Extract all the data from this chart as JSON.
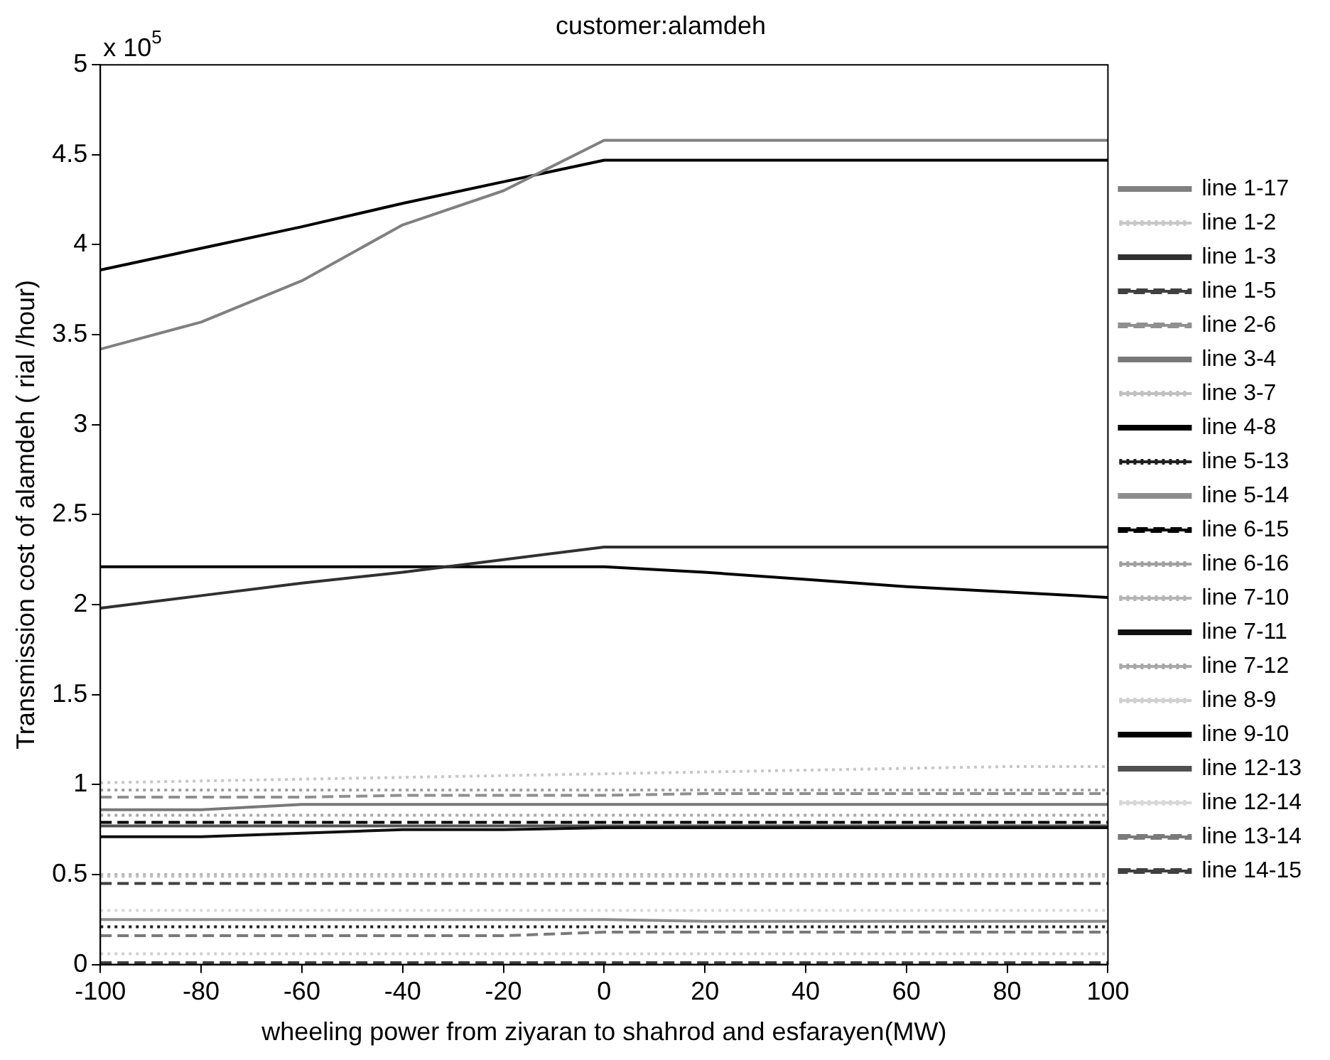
{
  "chart_data": {
    "type": "line",
    "title": "customer:alamdeh",
    "xlabel": "wheeling power from ziyaran to shahrod and esfarayen(MW)",
    "ylabel": "Transmission cost of alamdeh ( rial /hour)",
    "annotations": [
      "x 10$^{5}$"
    ],
    "x": [
      -100,
      -80,
      -60,
      -40,
      -20,
      0,
      20,
      40,
      60,
      80,
      100
    ],
    "xlim": [
      -100,
      100
    ],
    "xticks": [
      -100,
      -80,
      -60,
      -40,
      -20,
      0,
      20,
      40,
      60,
      80,
      100
    ],
    "ylim": [
      0,
      5
    ],
    "yticks": [
      0,
      0.5,
      1,
      1.5,
      2,
      2.5,
      3,
      3.5,
      4,
      4.5,
      5
    ],
    "legend": "right",
    "grid": false,
    "series": [
      {
        "name": "line 1-17",
        "color": "#808080",
        "line_style": "solid",
        "values": [
          3.42,
          3.57,
          3.8,
          4.11,
          4.3,
          4.58,
          4.58,
          4.58,
          4.58,
          4.58,
          4.58
        ]
      },
      {
        "name": "line 1-2",
        "color": "#c8c8c8",
        "line_style": "dotted",
        "values": [
          1.01,
          1.02,
          1.03,
          1.04,
          1.05,
          1.06,
          1.07,
          1.08,
          1.09,
          1.1,
          1.1
        ]
      },
      {
        "name": "line 1-3",
        "color": "#303030",
        "line_style": "solid",
        "values": [
          1.98,
          2.05,
          2.12,
          2.18,
          2.25,
          2.32,
          2.32,
          2.32,
          2.32,
          2.32,
          2.32
        ]
      },
      {
        "name": "line 1-5",
        "color": "#404040",
        "line_style": "dashed",
        "values": [
          0.45,
          0.45,
          0.45,
          0.45,
          0.45,
          0.45,
          0.45,
          0.45,
          0.45,
          0.45,
          0.45
        ]
      },
      {
        "name": "line 2-6",
        "color": "#909090",
        "line_style": "dashed",
        "values": [
          0.93,
          0.93,
          0.93,
          0.94,
          0.94,
          0.94,
          0.95,
          0.95,
          0.95,
          0.95,
          0.95
        ]
      },
      {
        "name": "line 3-4",
        "color": "#787878",
        "line_style": "solid",
        "values": [
          0.86,
          0.86,
          0.89,
          0.89,
          0.89,
          0.89,
          0.89,
          0.89,
          0.89,
          0.89,
          0.89
        ]
      },
      {
        "name": "line 3-7",
        "color": "#c0c0c0",
        "line_style": "dotted",
        "values": [
          0.49,
          0.49,
          0.49,
          0.49,
          0.49,
          0.49,
          0.49,
          0.49,
          0.49,
          0.49,
          0.49
        ]
      },
      {
        "name": "line 4-8",
        "color": "#000000",
        "line_style": "solid",
        "values": [
          3.86,
          3.98,
          4.1,
          4.23,
          4.35,
          4.47,
          4.47,
          4.47,
          4.47,
          4.47,
          4.47
        ]
      },
      {
        "name": "line 5-13",
        "color": "#202020",
        "line_style": "dotted",
        "values": [
          0.21,
          0.21,
          0.21,
          0.21,
          0.21,
          0.21,
          0.21,
          0.21,
          0.21,
          0.21,
          0.21
        ]
      },
      {
        "name": "line 5-14",
        "color": "#8c8c8c",
        "line_style": "solid",
        "values": [
          0.25,
          0.25,
          0.25,
          0.25,
          0.25,
          0.25,
          0.24,
          0.24,
          0.24,
          0.24,
          0.24
        ]
      },
      {
        "name": "line 6-15",
        "color": "#000000",
        "line_style": "dashed",
        "values": [
          0.79,
          0.79,
          0.79,
          0.79,
          0.79,
          0.79,
          0.79,
          0.79,
          0.79,
          0.79,
          0.79
        ]
      },
      {
        "name": "line 6-16",
        "color": "#a0a0a0",
        "line_style": "dotted",
        "values": [
          0.97,
          0.97,
          0.97,
          0.97,
          0.97,
          0.97,
          0.97,
          0.97,
          0.97,
          0.97,
          0.97
        ]
      },
      {
        "name": "line 7-10",
        "color": "#b4b4b4",
        "line_style": "dotted",
        "values": [
          0.5,
          0.5,
          0.5,
          0.5,
          0.5,
          0.5,
          0.5,
          0.5,
          0.5,
          0.5,
          0.5
        ]
      },
      {
        "name": "line 7-11",
        "color": "#101010",
        "line_style": "solid",
        "values": [
          0.71,
          0.71,
          0.73,
          0.75,
          0.75,
          0.76,
          0.76,
          0.76,
          0.76,
          0.76,
          0.76
        ]
      },
      {
        "name": "line 7-12",
        "color": "#a8a8a8",
        "line_style": "dotted",
        "values": [
          0.83,
          0.83,
          0.83,
          0.83,
          0.83,
          0.83,
          0.83,
          0.83,
          0.83,
          0.83,
          0.83
        ]
      },
      {
        "name": "line 8-9",
        "color": "#d0d0d0",
        "line_style": "dotted",
        "values": [
          0.06,
          0.06,
          0.06,
          0.06,
          0.06,
          0.06,
          0.06,
          0.06,
          0.06,
          0.06,
          0.06
        ]
      },
      {
        "name": "line 9-10",
        "color": "#000000",
        "line_style": "solid",
        "values": [
          2.21,
          2.21,
          2.21,
          2.21,
          2.21,
          2.21,
          2.18,
          2.14,
          2.1,
          2.07,
          2.04
        ]
      },
      {
        "name": "line 12-13",
        "color": "#505050",
        "line_style": "solid",
        "values": [
          0.77,
          0.77,
          0.77,
          0.77,
          0.77,
          0.77,
          0.77,
          0.77,
          0.77,
          0.77,
          0.77
        ]
      },
      {
        "name": "line 12-14",
        "color": "#d8d8d8",
        "line_style": "dotted",
        "values": [
          0.3,
          0.3,
          0.3,
          0.3,
          0.3,
          0.3,
          0.3,
          0.3,
          0.3,
          0.3,
          0.3
        ]
      },
      {
        "name": "line 13-14",
        "color": "#7a7a7a",
        "line_style": "dashed",
        "values": [
          0.16,
          0.16,
          0.16,
          0.16,
          0.16,
          0.18,
          0.18,
          0.18,
          0.18,
          0.18,
          0.18
        ]
      },
      {
        "name": "line 14-15",
        "color": "#404040",
        "line_style": "dashed",
        "values": [
          0.01,
          0.01,
          0.01,
          0.01,
          0.01,
          0.01,
          0.01,
          0.01,
          0.01,
          0.01,
          0.01
        ]
      }
    ]
  }
}
